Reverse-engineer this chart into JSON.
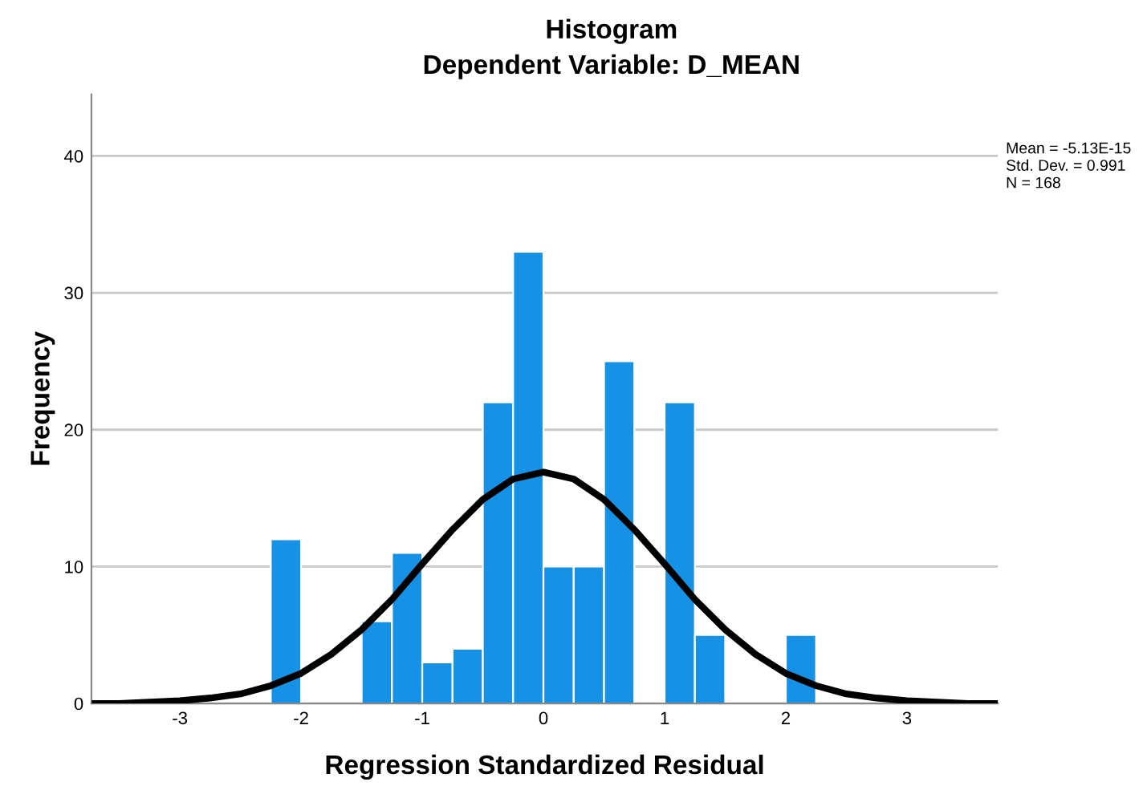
{
  "chart_data": {
    "type": "histogram",
    "title": "Histogram",
    "subtitle": "Dependent Variable: D_MEAN",
    "xlabel": "Regression Standardized Residual",
    "ylabel": "Frequency",
    "bins": [
      -2.25,
      -2.0,
      -1.75,
      -1.5,
      -1.25,
      -1.0,
      -0.75,
      -0.5,
      -0.25,
      0,
      0.25,
      0.5,
      0.75,
      1.0,
      1.25,
      1.5,
      1.75,
      2.0,
      2.25
    ],
    "values": [
      12,
      0,
      0,
      6,
      11,
      3,
      4,
      22,
      33,
      10,
      10,
      25,
      0,
      22,
      5,
      0,
      0,
      5
    ],
    "color": "#1592e6",
    "series": [
      {
        "type": "line",
        "color": "#000000",
        "x": [
          -3.7,
          -3.5,
          -3.25,
          -3,
          -2.75,
          -2.5,
          -2.25,
          -2,
          -1.75,
          -1.5,
          -1.25,
          -1,
          -0.75,
          -0.5,
          -0.25,
          0,
          0.25,
          0.5,
          0.75,
          1,
          1.25,
          1.5,
          1.75,
          2,
          2.25,
          2.5,
          2.75,
          3,
          3.25,
          3.5,
          3.75
        ],
        "values": [
          0.0,
          0.0,
          0.1,
          0.2,
          0.4,
          0.7,
          1.3,
          2.2,
          3.6,
          5.4,
          7.6,
          10.2,
          12.7,
          14.9,
          16.4,
          16.9,
          16.4,
          14.9,
          12.7,
          10.2,
          7.6,
          5.4,
          3.6,
          2.2,
          1.3,
          0.7,
          0.4,
          0.2,
          0.1,
          0.0,
          0.0
        ]
      }
    ],
    "xlim": [
      -3.73,
      3.75
    ],
    "ylim": [
      0,
      44.5
    ],
    "xticks": [
      -3,
      -2,
      -1,
      0,
      1,
      2,
      3
    ],
    "yticks": [
      0,
      10,
      20,
      30,
      40
    ],
    "grid": "y",
    "annotations": [
      "Mean = -5.13E-15",
      "Std. Dev. = 0.991",
      "N = 168"
    ]
  }
}
